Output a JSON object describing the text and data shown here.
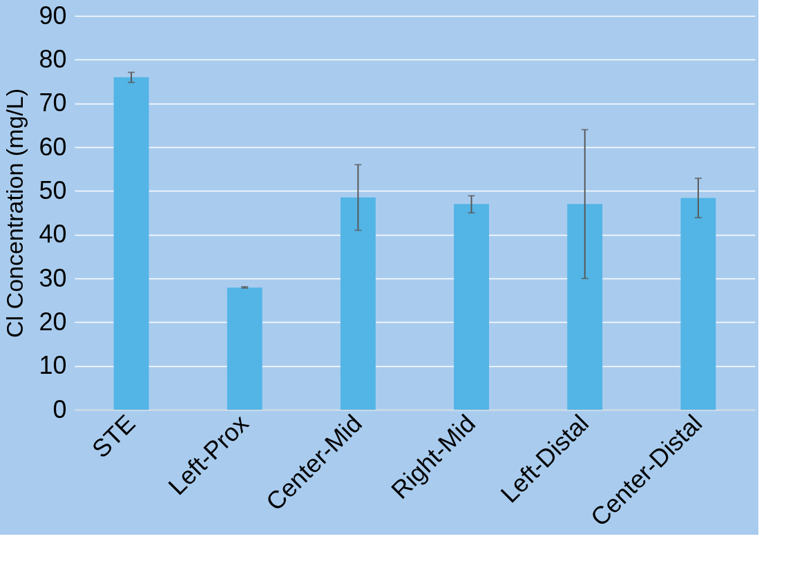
{
  "chart_data": {
    "type": "bar",
    "ylabel": "Cl  Concentration (mg/L)",
    "categories": [
      "STE",
      "Left-Prox",
      "Center-Mid",
      "Right-Mid",
      "Left-Distal",
      "Center-Distal"
    ],
    "values": [
      76,
      27.9,
      48.5,
      47,
      47,
      48.4
    ],
    "errors": [
      [
        74.8,
        77.1
      ],
      [
        27.8,
        28.1
      ],
      [
        41,
        56
      ],
      [
        45,
        48.9
      ],
      [
        30,
        64
      ],
      [
        43.9,
        52.9
      ]
    ],
    "color": "#53b4e6",
    "ylim": [
      0,
      90
    ],
    "yticks": [
      0,
      10,
      20,
      30,
      40,
      50,
      60,
      70,
      80,
      90
    ],
    "grid": "y"
  }
}
